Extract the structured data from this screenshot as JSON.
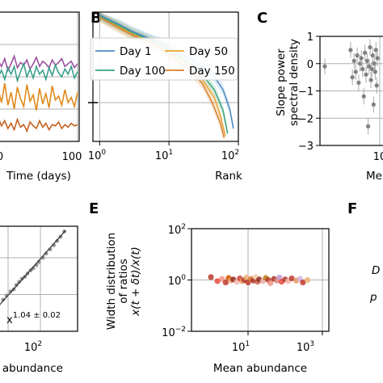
{
  "panels": {
    "A": {
      "xlabel": "Time (days)",
      "ticks_x": [
        "0",
        "100"
      ],
      "label": ""
    },
    "B": {
      "label": "B",
      "xlabel": "Rank",
      "ticks_x": [
        "10",
        "10",
        "10"
      ],
      "ticks_x_exp": [
        "0",
        "1",
        "2"
      ]
    },
    "C": {
      "label": "C",
      "ylabel_line1": "Slope power",
      "ylabel_line2": "spectral density",
      "ticks_y": [
        "1",
        "0",
        "−1",
        "−2",
        "−3"
      ],
      "xlabel_partial": "Me",
      "tick_x_partial": "10"
    },
    "D": {
      "xlabel_partial": "n abundance",
      "tick_x": "10",
      "tick_x_exp": "2",
      "annotation_base": "x",
      "annotation_sup": "1.04 ± 0.02"
    },
    "E": {
      "label": "E",
      "ylabel_line1": "Width distribution",
      "ylabel_line2": "of ratios",
      "ylabel_line3": "x(t + δt)/x(t)",
      "xlabel": "Mean abundance",
      "ticks_y": [
        "10",
        "10",
        "10"
      ],
      "ticks_y_exp": [
        "2",
        "0",
        "−2"
      ],
      "ticks_x": [
        "10",
        "10"
      ],
      "ticks_x_exp": [
        "1",
        "3"
      ]
    },
    "F": {
      "label": "F",
      "text_1": "D",
      "text_2": "p"
    }
  },
  "chart_data": [
    {
      "panel": "A",
      "type": "line",
      "xlabel": "Time (days)",
      "xlim": [
        0,
        100
      ],
      "series": [
        {
          "color": "#9a4fa0",
          "x": [
            0,
            4,
            8,
            12,
            16,
            20,
            24,
            28,
            32,
            36,
            40,
            44,
            48,
            52,
            56,
            60,
            64,
            68,
            72,
            76,
            80,
            84,
            88,
            92,
            96,
            100
          ],
          "y": [
            0.62,
            0.58,
            0.64,
            0.55,
            0.6,
            0.66,
            0.57,
            0.61,
            0.59,
            0.63,
            0.56,
            0.6,
            0.65,
            0.58,
            0.62,
            0.6,
            0.57,
            0.63,
            0.59,
            0.61,
            0.64,
            0.58,
            0.6,
            0.62,
            0.57,
            0.6
          ]
        },
        {
          "color": "#3a9e8a",
          "x": [
            0,
            4,
            8,
            12,
            16,
            20,
            24,
            28,
            32,
            36,
            40,
            44,
            48,
            52,
            56,
            60,
            64,
            68,
            72,
            76,
            80,
            84,
            88,
            92,
            96,
            100
          ],
          "y": [
            0.5,
            0.55,
            0.48,
            0.57,
            0.52,
            0.58,
            0.47,
            0.54,
            0.6,
            0.5,
            0.56,
            0.49,
            0.58,
            0.52,
            0.55,
            0.48,
            0.57,
            0.51,
            0.59,
            0.53,
            0.5,
            0.56,
            0.52,
            0.58,
            0.49,
            0.54
          ]
        },
        {
          "color": "#e08a1a",
          "x": [
            0,
            4,
            8,
            12,
            16,
            20,
            24,
            28,
            32,
            36,
            40,
            44,
            48,
            52,
            56,
            60,
            64,
            68,
            72,
            76,
            80,
            84,
            88,
            92,
            96,
            100
          ],
          "y": [
            0.4,
            0.3,
            0.45,
            0.28,
            0.38,
            0.25,
            0.42,
            0.33,
            0.27,
            0.44,
            0.31,
            0.36,
            0.24,
            0.41,
            0.29,
            0.37,
            0.26,
            0.43,
            0.32,
            0.35,
            0.28,
            0.4,
            0.3,
            0.34,
            0.27,
            0.38
          ]
        },
        {
          "color": "#c4611f",
          "x": [
            0,
            4,
            8,
            12,
            16,
            20,
            24,
            28,
            32,
            36,
            40,
            44,
            48,
            52,
            56,
            60,
            64,
            68,
            72,
            76,
            80,
            84,
            88,
            92,
            96,
            100
          ],
          "y": [
            0.18,
            0.12,
            0.16,
            0.1,
            0.14,
            0.09,
            0.17,
            0.11,
            0.13,
            0.08,
            0.15,
            0.12,
            0.1,
            0.16,
            0.11,
            0.14,
            0.09,
            0.13,
            0.12,
            0.15,
            0.1,
            0.13,
            0.11,
            0.14,
            0.12,
            0.13
          ]
        }
      ]
    },
    {
      "panel": "B",
      "type": "line",
      "xlabel": "Rank",
      "xscale": "log",
      "xlim": [
        0.8,
        100
      ],
      "legend": {
        "placement": "top-right",
        "entries": [
          {
            "name": "Day 1",
            "color": "#4c8cc9"
          },
          {
            "name": "Day 50",
            "color": "#e8a43a"
          },
          {
            "name": "Day 100",
            "color": "#3aa57c"
          },
          {
            "name": "Day 150",
            "color": "#d9812e"
          }
        ]
      },
      "series": [
        {
          "name": "Day 1",
          "color": "#4c8cc9",
          "x": [
            1,
            2,
            3,
            5,
            8,
            12,
            20,
            30,
            45,
            60,
            75,
            85
          ],
          "y": [
            0.98,
            0.9,
            0.85,
            0.8,
            0.76,
            0.7,
            0.64,
            0.58,
            0.5,
            0.4,
            0.25,
            0.1
          ]
        },
        {
          "name": "Day 50",
          "color": "#e8a43a",
          "x": [
            1,
            2,
            3,
            5,
            8,
            12,
            20,
            30,
            45,
            55,
            65
          ],
          "y": [
            0.97,
            0.88,
            0.83,
            0.78,
            0.72,
            0.66,
            0.58,
            0.48,
            0.34,
            0.2,
            0.04
          ]
        },
        {
          "name": "Day 100",
          "color": "#3aa57c",
          "x": [
            1,
            2,
            3,
            5,
            8,
            12,
            20,
            30,
            45,
            60,
            70
          ],
          "y": [
            0.97,
            0.89,
            0.84,
            0.79,
            0.74,
            0.68,
            0.6,
            0.52,
            0.4,
            0.24,
            0.06
          ]
        },
        {
          "name": "Day 150",
          "color": "#d9812e",
          "x": [
            1,
            2,
            3,
            5,
            8,
            12,
            20,
            30,
            42,
            55,
            62
          ],
          "y": [
            0.96,
            0.87,
            0.82,
            0.77,
            0.71,
            0.64,
            0.55,
            0.45,
            0.3,
            0.14,
            0.03
          ]
        }
      ]
    },
    {
      "panel": "C",
      "type": "scatter",
      "ylabel": "Slope power spectral density",
      "ylim": [
        -3,
        1
      ],
      "xscale": "log",
      "points": [
        {
          "x": 0.3,
          "y": -0.1
        },
        {
          "x": 0.75,
          "y": 0.5
        },
        {
          "x": 0.8,
          "y": -0.5
        },
        {
          "x": 0.85,
          "y": 0.1
        },
        {
          "x": 0.9,
          "y": -0.3
        },
        {
          "x": 0.95,
          "y": 0.3
        },
        {
          "x": 1.0,
          "y": -0.7
        },
        {
          "x": 1.05,
          "y": 0.0
        },
        {
          "x": 1.1,
          "y": 0.2
        },
        {
          "x": 1.15,
          "y": -0.2
        },
        {
          "x": 1.2,
          "y": -1.2
        },
        {
          "x": 1.25,
          "y": 0.4
        },
        {
          "x": 1.3,
          "y": -0.4
        },
        {
          "x": 1.35,
          "y": 0.1
        },
        {
          "x": 1.4,
          "y": -2.3
        },
        {
          "x": 1.45,
          "y": -0.1
        },
        {
          "x": 1.5,
          "y": 0.6
        },
        {
          "x": 1.55,
          "y": -0.6
        },
        {
          "x": 1.6,
          "y": -0.2
        },
        {
          "x": 1.65,
          "y": 0.3
        },
        {
          "x": 1.7,
          "y": -1.5
        },
        {
          "x": 1.75,
          "y": 0.0
        },
        {
          "x": 1.8,
          "y": -0.3
        },
        {
          "x": 1.85,
          "y": 0.5
        },
        {
          "x": 1.9,
          "y": -0.8
        },
        {
          "x": 1.95,
          "y": 0.2
        }
      ]
    },
    {
      "panel": "D",
      "type": "scatter",
      "xscale": "log",
      "xlim": [
        1,
        1000
      ],
      "fit_exponent": "1.04 ± 0.02",
      "points": [
        {
          "x": 2,
          "y": 0.12
        },
        {
          "x": 3,
          "y": 0.18
        },
        {
          "x": 4,
          "y": 0.22
        },
        {
          "x": 5,
          "y": 0.25
        },
        {
          "x": 7,
          "y": 0.3
        },
        {
          "x": 9,
          "y": 0.34
        },
        {
          "x": 12,
          "y": 0.38
        },
        {
          "x": 15,
          "y": 0.4
        },
        {
          "x": 18,
          "y": 0.44
        },
        {
          "x": 22,
          "y": 0.47
        },
        {
          "x": 27,
          "y": 0.5
        },
        {
          "x": 33,
          "y": 0.52
        },
        {
          "x": 40,
          "y": 0.55
        },
        {
          "x": 50,
          "y": 0.58
        },
        {
          "x": 60,
          "y": 0.6
        },
        {
          "x": 75,
          "y": 0.63
        },
        {
          "x": 90,
          "y": 0.66
        },
        {
          "x": 120,
          "y": 0.7
        },
        {
          "x": 150,
          "y": 0.74
        },
        {
          "x": 200,
          "y": 0.78
        },
        {
          "x": 260,
          "y": 0.82
        },
        {
          "x": 330,
          "y": 0.86
        },
        {
          "x": 420,
          "y": 0.9
        },
        {
          "x": 550,
          "y": 0.95
        }
      ]
    },
    {
      "panel": "E",
      "type": "scatter",
      "xlabel": "Mean abundance",
      "ylabel": "Width distribution of ratios x(t + δt)/x(t)",
      "xscale": "log",
      "yscale": "log",
      "xlim": [
        0.3,
        1500
      ],
      "ylim": [
        0.01,
        100
      ],
      "points": [
        {
          "x": 1.0,
          "y": 1.3,
          "c": "#c0392b"
        },
        {
          "x": 1.5,
          "y": 0.9,
          "c": "#e74c3c"
        },
        {
          "x": 2,
          "y": 1.1,
          "c": "#f1948a"
        },
        {
          "x": 2.5,
          "y": 0.8,
          "c": "#c0392b"
        },
        {
          "x": 3,
          "y": 1.2,
          "c": "#d35400"
        },
        {
          "x": 3.5,
          "y": 0.95,
          "c": "#e8a87c"
        },
        {
          "x": 4,
          "y": 1.05,
          "c": "#922b21"
        },
        {
          "x": 5,
          "y": 0.85,
          "c": "#f5b7b1"
        },
        {
          "x": 6,
          "y": 1.15,
          "c": "#cb4335"
        },
        {
          "x": 7,
          "y": 0.9,
          "c": "#e59866"
        },
        {
          "x": 8,
          "y": 1.0,
          "c": "#b03a2e"
        },
        {
          "x": 9,
          "y": 1.25,
          "c": "#f0b27a"
        },
        {
          "x": 10,
          "y": 0.8,
          "c": "#c0392b"
        },
        {
          "x": 12,
          "y": 1.1,
          "c": "#dc7633"
        },
        {
          "x": 14,
          "y": 0.95,
          "c": "#a93226"
        },
        {
          "x": 16,
          "y": 1.3,
          "c": "#f5cba7"
        },
        {
          "x": 18,
          "y": 0.85,
          "c": "#cd6155"
        },
        {
          "x": 20,
          "y": 1.05,
          "c": "#922b21"
        },
        {
          "x": 25,
          "y": 0.9,
          "c": "#e6b0aa"
        },
        {
          "x": 30,
          "y": 1.2,
          "c": "#b9770e"
        },
        {
          "x": 35,
          "y": 1.0,
          "c": "#c0392b"
        },
        {
          "x": 40,
          "y": 0.75,
          "c": "#f1948a"
        },
        {
          "x": 50,
          "y": 1.1,
          "c": "#a93226"
        },
        {
          "x": 60,
          "y": 0.95,
          "c": "#d98880"
        },
        {
          "x": 70,
          "y": 1.25,
          "c": "#c39bd3"
        },
        {
          "x": 80,
          "y": 0.85,
          "c": "#e74c3c"
        },
        {
          "x": 100,
          "y": 1.05,
          "c": "#b03a2e"
        },
        {
          "x": 120,
          "y": 0.9,
          "c": "#f5b7b1"
        },
        {
          "x": 150,
          "y": 1.15,
          "c": "#c0392b"
        },
        {
          "x": 200,
          "y": 0.95,
          "c": "#e59866"
        },
        {
          "x": 250,
          "y": 1.1,
          "c": "#d2b4de"
        },
        {
          "x": 300,
          "y": 0.8,
          "c": "#c0392b"
        },
        {
          "x": 400,
          "y": 1.0,
          "c": "#f0b27a"
        }
      ]
    }
  ]
}
